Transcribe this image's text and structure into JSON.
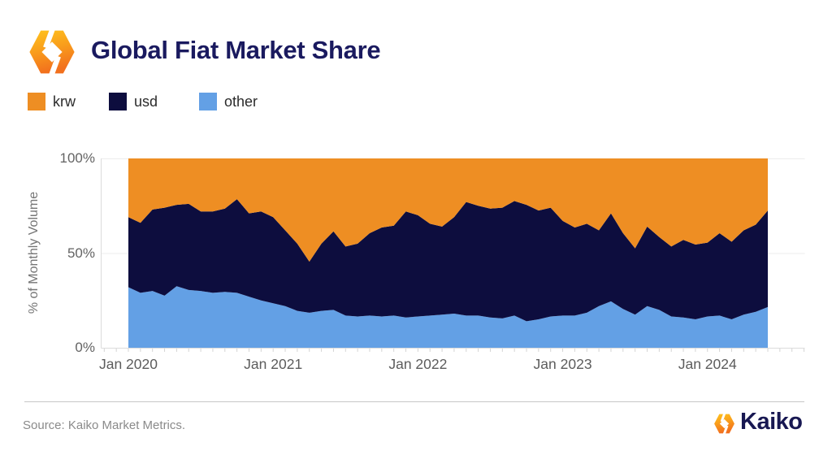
{
  "header": {
    "title": "Global Fiat Market Share",
    "logo": "kaiko-hex-logo"
  },
  "legend": {
    "items": [
      {
        "label": "krw",
        "color": "#EE8E23"
      },
      {
        "label": "usd",
        "color": "#0D0D3E"
      },
      {
        "label": "other",
        "color": "#63A0E5"
      }
    ]
  },
  "chart_data": {
    "type": "area",
    "stacked": true,
    "title": "Global Fiat Market Share",
    "xlabel": "",
    "ylabel": "% of Monthly Volume",
    "ylim": [
      0,
      100
    ],
    "grid": "horizontal",
    "legend_position": "top-left",
    "yticks": [
      {
        "label": "100%",
        "value": 100
      },
      {
        "label": "50%",
        "value": 50
      },
      {
        "label": "0%",
        "value": 0
      }
    ],
    "xticks": [
      {
        "label": "Jan 2020",
        "month_index": 0
      },
      {
        "label": "Jan 2021",
        "month_index": 12
      },
      {
        "label": "Jan 2022",
        "month_index": 24
      },
      {
        "label": "Jan 2023",
        "month_index": 36
      },
      {
        "label": "Jan 2024",
        "month_index": 48
      }
    ],
    "x_months": [
      "Jan 2020",
      "Feb 2020",
      "Mar 2020",
      "Apr 2020",
      "May 2020",
      "Jun 2020",
      "Jul 2020",
      "Aug 2020",
      "Sep 2020",
      "Oct 2020",
      "Nov 2020",
      "Dec 2020",
      "Jan 2021",
      "Feb 2021",
      "Mar 2021",
      "Apr 2021",
      "May 2021",
      "Jun 2021",
      "Jul 2021",
      "Aug 2021",
      "Sep 2021",
      "Oct 2021",
      "Nov 2021",
      "Dec 2021",
      "Jan 2022",
      "Feb 2022",
      "Mar 2022",
      "Apr 2022",
      "May 2022",
      "Jun 2022",
      "Jul 2022",
      "Aug 2022",
      "Sep 2022",
      "Oct 2022",
      "Nov 2022",
      "Dec 2022",
      "Jan 2023",
      "Feb 2023",
      "Mar 2023",
      "Apr 2023",
      "May 2023",
      "Jun 2023",
      "Jul 2023",
      "Aug 2023",
      "Sep 2023",
      "Oct 2023",
      "Nov 2023",
      "Dec 2023",
      "Jan 2024",
      "Feb 2024",
      "Mar 2024",
      "Apr 2024",
      "May 2024",
      "Jun 2024"
    ],
    "series": [
      {
        "name": "other",
        "color": "#63A0E5",
        "values": [
          32,
          29,
          30,
          27.5,
          32.5,
          30.5,
          30,
          29,
          29.5,
          29,
          27,
          25,
          23.5,
          22,
          19.5,
          18.5,
          19.5,
          20,
          17,
          16.5,
          17,
          16.5,
          17,
          16,
          16.5,
          17,
          17.5,
          18,
          17,
          17,
          16,
          15.5,
          17,
          14,
          15,
          16.5,
          17,
          17,
          18.5,
          22,
          24.5,
          20.5,
          17.5,
          22,
          20,
          16.5,
          16,
          15,
          16.5,
          17,
          15,
          17.5,
          19,
          21.5
        ]
      },
      {
        "name": "usd",
        "color": "#0D0D3E",
        "values": [
          37,
          37,
          43,
          46.5,
          43,
          45.5,
          42,
          43,
          44,
          49.5,
          44,
          47,
          45.5,
          40,
          35.5,
          27,
          35.5,
          41.5,
          36.5,
          38.5,
          43.5,
          47,
          47.5,
          56,
          53.5,
          48.5,
          46.5,
          51,
          60,
          58,
          57.5,
          58.5,
          60.5,
          61.5,
          57.5,
          57.5,
          50,
          46.5,
          47,
          40,
          46.5,
          40,
          35,
          42,
          38.5,
          37,
          41,
          39.5,
          39,
          43.5,
          41,
          44.5,
          46,
          51
        ]
      },
      {
        "name": "krw",
        "color": "#EE8E23",
        "values": [
          31,
          34,
          27,
          26,
          24.5,
          24,
          28,
          28,
          26.5,
          21.5,
          29,
          28,
          31,
          38,
          45,
          54.5,
          45,
          38.5,
          46.5,
          45,
          39.5,
          36.5,
          35.5,
          28,
          30,
          34.5,
          36,
          31,
          23,
          25,
          26.5,
          26,
          22.5,
          24.5,
          27.5,
          26,
          33,
          36.5,
          34.5,
          38,
          29,
          39.5,
          47.5,
          36,
          41.5,
          46.5,
          43,
          45.5,
          44.5,
          39.5,
          44,
          38,
          35,
          27.5
        ]
      }
    ]
  },
  "footer": {
    "source": "Source: Kaiko Market Metrics.",
    "brand": "Kaiko"
  }
}
